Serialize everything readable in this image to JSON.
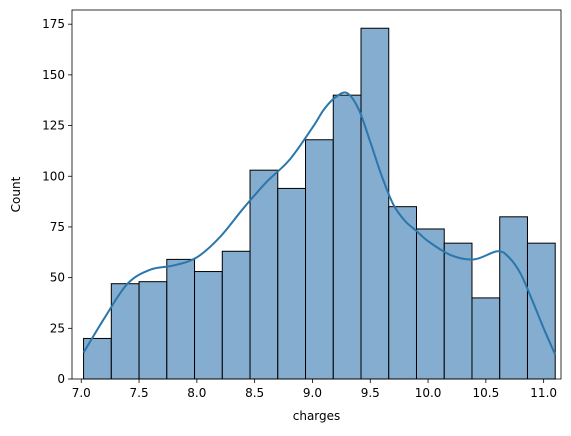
{
  "chart_data": {
    "type": "bar",
    "xlabel": "charges",
    "ylabel": "Count",
    "xlim": [
      6.92,
      11.15
    ],
    "ylim": [
      0,
      182
    ],
    "xticks": [
      7.0,
      7.5,
      8.0,
      8.5,
      9.0,
      9.5,
      10.0,
      10.5,
      11.0
    ],
    "xtick_labels": [
      "7.0",
      "7.5",
      "8.0",
      "8.5",
      "9.0",
      "9.5",
      "10.0",
      "10.5",
      "11.0"
    ],
    "yticks": [
      0,
      25,
      50,
      75,
      100,
      125,
      150,
      175
    ],
    "ytick_labels": [
      "0",
      "25",
      "50",
      "75",
      "100",
      "125",
      "150",
      "175"
    ],
    "bins": [
      {
        "x0": 7.02,
        "x1": 7.26,
        "count": 20
      },
      {
        "x0": 7.26,
        "x1": 7.5,
        "count": 47
      },
      {
        "x0": 7.5,
        "x1": 7.74,
        "count": 48
      },
      {
        "x0": 7.74,
        "x1": 7.98,
        "count": 59
      },
      {
        "x0": 7.98,
        "x1": 8.22,
        "count": 53
      },
      {
        "x0": 8.22,
        "x1": 8.46,
        "count": 63
      },
      {
        "x0": 8.46,
        "x1": 8.7,
        "count": 103
      },
      {
        "x0": 8.7,
        "x1": 8.94,
        "count": 94
      },
      {
        "x0": 8.94,
        "x1": 9.18,
        "count": 118
      },
      {
        "x0": 9.18,
        "x1": 9.42,
        "count": 140
      },
      {
        "x0": 9.42,
        "x1": 9.66,
        "count": 173
      },
      {
        "x0": 9.66,
        "x1": 9.9,
        "count": 85
      },
      {
        "x0": 9.9,
        "x1": 10.14,
        "count": 74
      },
      {
        "x0": 10.14,
        "x1": 10.38,
        "count": 67
      },
      {
        "x0": 10.38,
        "x1": 10.62,
        "count": 40
      },
      {
        "x0": 10.62,
        "x1": 10.86,
        "count": 80
      },
      {
        "x0": 10.86,
        "x1": 11.1,
        "count": 67
      }
    ],
    "kde": {
      "x": [
        7.02,
        7.2,
        7.4,
        7.6,
        7.8,
        8.0,
        8.2,
        8.4,
        8.6,
        8.8,
        9.0,
        9.1,
        9.2,
        9.3,
        9.4,
        9.5,
        9.6,
        9.7,
        9.8,
        9.9,
        10.0,
        10.2,
        10.4,
        10.6,
        10.7,
        10.8,
        10.9,
        11.0,
        11.1
      ],
      "y": [
        13,
        30,
        47,
        54,
        56,
        60,
        70,
        84,
        97,
        108,
        124,
        133,
        139,
        141,
        133,
        117,
        100,
        86,
        78,
        73,
        68,
        61,
        59,
        63,
        60,
        52,
        39,
        25,
        12
      ]
    },
    "style": {
      "bar_fill": "#6f9fc8",
      "bar_edge": "#000000",
      "kde_color": "#2b76ab",
      "grid": false
    }
  }
}
